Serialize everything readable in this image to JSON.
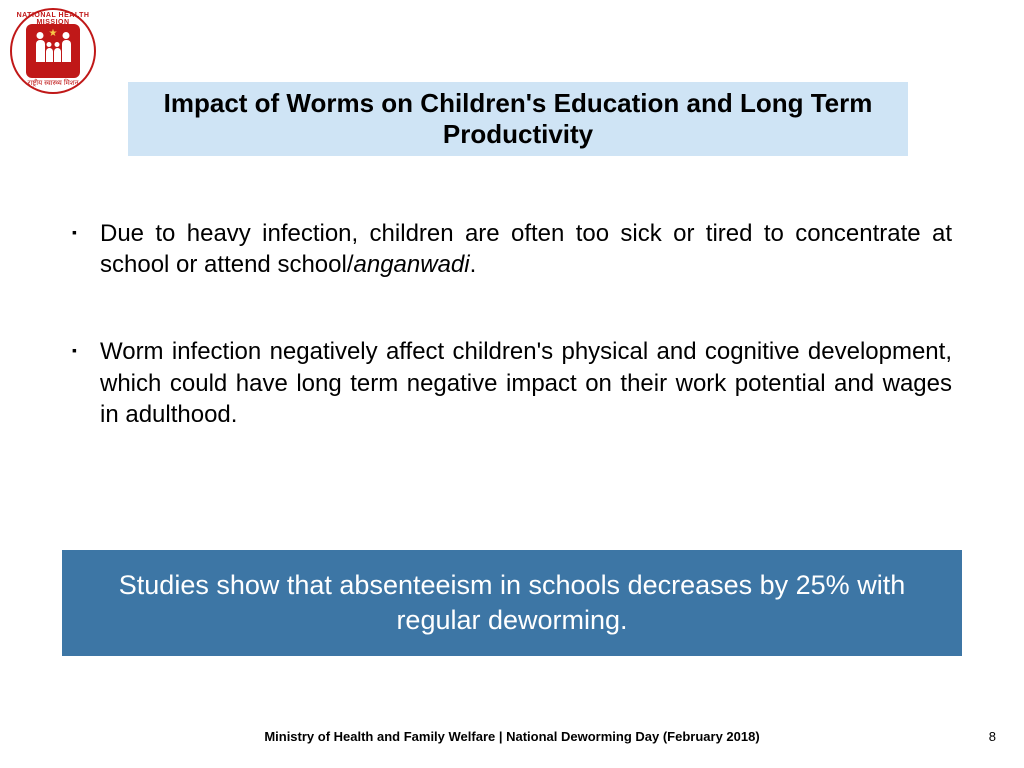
{
  "logo": {
    "top_text": "NATIONAL HEALTH MISSION",
    "bottom_text": "राष्ट्रीय स्वास्थ्य मिशन"
  },
  "title": "Impact of Worms on Children's Education and Long Term Productivity",
  "bullets": [
    {
      "text_pre": "Due to heavy infection, children are often too sick or tired to concentrate at school or attend school/",
      "text_italic": "anganwadi",
      "text_post": "."
    },
    {
      "text_pre": "Worm infection negatively affect children's physical and cognitive development, which could have long term negative impact on their work potential and wages in adulthood.",
      "text_italic": "",
      "text_post": ""
    }
  ],
  "callout": "Studies show that absenteeism in schools decreases by 25% with regular deworming.",
  "footer": "Ministry of Health and Family Welfare | National Deworming Day (February 2018)",
  "page_number": "8",
  "colors": {
    "title_bg": "#cfe4f5",
    "callout_bg": "#3d76a5",
    "logo_red": "#c01818",
    "text": "#000000",
    "callout_text": "#ffffff"
  }
}
